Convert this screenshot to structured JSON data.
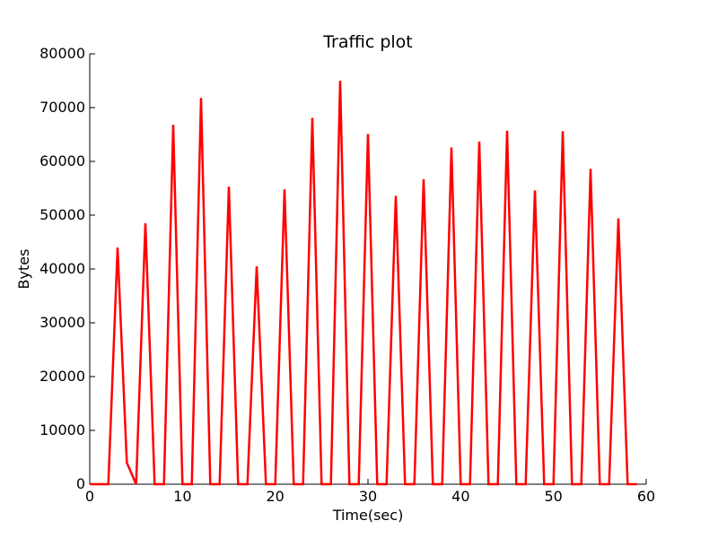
{
  "chart_data": {
    "type": "line",
    "title": "Traffic plot",
    "xlabel": "Time(sec)",
    "ylabel": "Bytes",
    "xlim": [
      0,
      60
    ],
    "ylim": [
      0,
      80000
    ],
    "xticks": [
      0,
      10,
      20,
      30,
      40,
      50,
      60
    ],
    "xtick_labels": [
      "0",
      "10",
      "20",
      "30",
      "40",
      "50",
      "60"
    ],
    "yticks": [
      0,
      10000,
      20000,
      30000,
      40000,
      50000,
      60000,
      70000,
      80000
    ],
    "ytick_labels": [
      "0",
      "10000",
      "20000",
      "30000",
      "40000",
      "50000",
      "60000",
      "70000",
      "80000"
    ],
    "grid": false,
    "legend": "none",
    "series_color": "#ff0000",
    "series": [
      {
        "x": [
          0,
          1,
          2,
          3,
          4,
          5,
          6,
          7,
          8,
          9,
          10,
          11,
          12,
          13,
          14,
          15,
          16,
          17,
          18,
          19,
          20,
          21,
          22,
          23,
          24,
          25,
          26,
          27,
          28,
          29,
          30,
          31,
          32,
          33,
          34,
          35,
          36,
          37,
          38,
          39,
          40,
          41,
          42,
          43,
          44,
          45,
          46,
          47,
          48,
          49,
          50,
          51,
          52,
          53,
          54,
          55,
          56,
          57,
          58,
          59
        ],
        "y": [
          0,
          0,
          0,
          44000,
          4000,
          0,
          48500,
          0,
          0,
          66800,
          0,
          0,
          71800,
          0,
          0,
          55300,
          0,
          0,
          40500,
          0,
          0,
          54800,
          0,
          0,
          68100,
          0,
          0,
          75000,
          0,
          0,
          65100,
          0,
          0,
          53600,
          0,
          0,
          56700,
          0,
          0,
          62600,
          0,
          0,
          63700,
          0,
          0,
          65700,
          0,
          0,
          54600,
          0,
          0,
          65600,
          0,
          0,
          58600,
          0,
          0,
          49400,
          0,
          0
        ]
      }
    ]
  }
}
